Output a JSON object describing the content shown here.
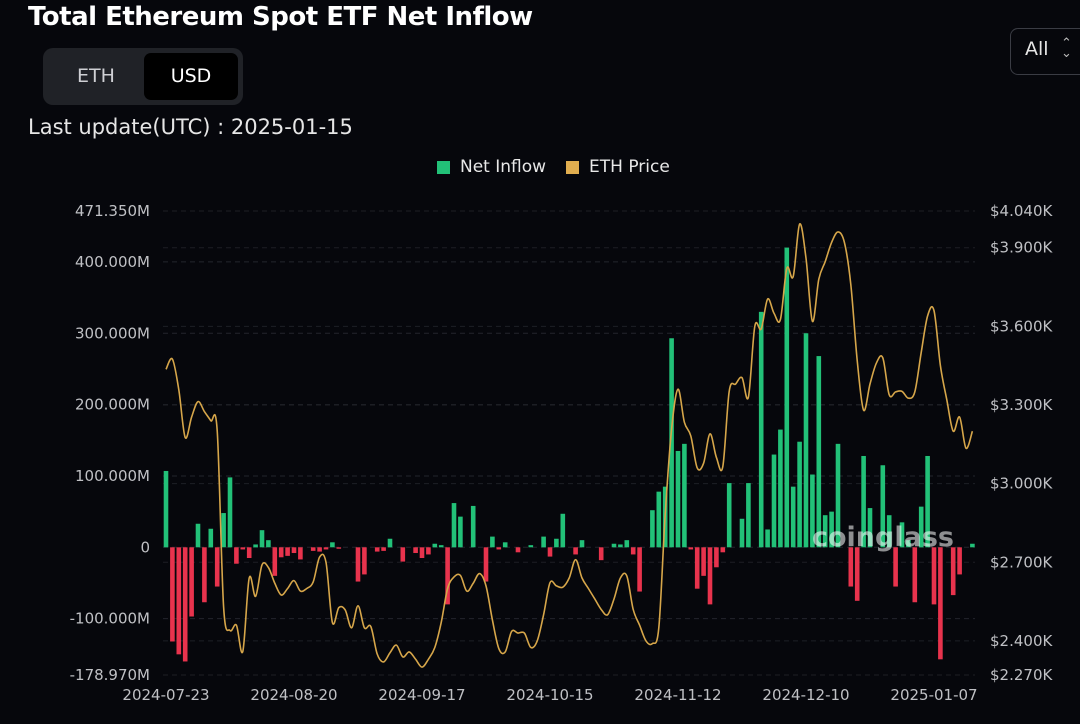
{
  "header": {
    "title": "Total Ethereum Spot ETF Net Inflow",
    "toggle": {
      "options": [
        "ETH",
        "USD"
      ],
      "selected": "USD"
    },
    "last_update": "Last update(UTC) : 2025-01-15",
    "range_select": {
      "value": "All",
      "icon": "chevron-up-down-icon"
    }
  },
  "watermark": "coinglass",
  "colors": {
    "inflow_positive": "#22c178",
    "inflow_negative": "#e8334d",
    "price_line": "#d6a64a",
    "background": "#06070c"
  },
  "chart_data": {
    "type": "bar+line",
    "title": "Total Ethereum Spot ETF Net Inflow",
    "legend": {
      "placement": "top-center",
      "entries": [
        "Net Inflow",
        "ETH Price"
      ]
    },
    "grid": true,
    "x_tick_labels": [
      "2024-07-23",
      "2024-08-20",
      "2024-09-17",
      "2024-10-15",
      "2024-11-12",
      "2024-12-10",
      "2025-01-07"
    ],
    "x_tick_bar_index": [
      0,
      20,
      40,
      60,
      80,
      100,
      120
    ],
    "y_left": {
      "ticks": [
        471.35,
        400,
        300,
        200,
        100,
        0,
        -100,
        -178.97
      ],
      "tick_labels": [
        "471.350M",
        "400.000M",
        "300.000M",
        "200.000M",
        "100.000M",
        "0",
        "-100.000M",
        "-178.970M"
      ],
      "range": [
        -178.97,
        471.35
      ],
      "unit": "M USD"
    },
    "y_right": {
      "ticks": [
        4040,
        3900,
        3600,
        3300,
        3000,
        2700,
        2400,
        2270
      ],
      "tick_labels": [
        "$4.040K",
        "$3.900K",
        "$3.600K",
        "$3.300K",
        "$3.000K",
        "$2.700K",
        "$2.400K",
        "$2.270K"
      ],
      "range": [
        2270,
        4040
      ],
      "unit": "USD"
    },
    "series": [
      {
        "name": "Net Inflow",
        "type": "bar",
        "axis": "left",
        "values": [
          107,
          -132,
          -150,
          -160,
          -97,
          33,
          -77,
          26,
          -55,
          48,
          98,
          -23,
          -3,
          -15,
          4,
          24,
          10,
          -40,
          -14,
          -12,
          -8,
          -17,
          0,
          -5,
          -6,
          -3,
          7,
          -2,
          0,
          0,
          -48,
          -38,
          0,
          -6,
          -5,
          12,
          0,
          -20,
          0,
          -8,
          -15,
          -10,
          5,
          3,
          -80,
          62,
          43,
          0,
          58,
          0,
          -48,
          15,
          -3,
          7,
          0,
          -7,
          0,
          3,
          0,
          15,
          -13,
          12,
          47,
          0,
          -10,
          10,
          0,
          0,
          -18,
          0,
          5,
          4,
          10,
          -10,
          -62,
          0,
          52,
          78,
          85,
          293,
          135,
          145,
          -3,
          -58,
          -40,
          -80,
          -28,
          -7,
          90,
          0,
          40,
          90,
          0,
          330,
          25,
          130,
          165,
          420,
          85,
          148,
          300,
          102,
          268,
          45,
          50,
          145,
          0,
          -55,
          -75,
          128,
          55,
          0,
          115,
          45,
          -55,
          35,
          10,
          -77,
          57,
          128,
          -80,
          -157,
          0,
          -67,
          -38,
          0,
          5
        ]
      },
      {
        "name": "ETH Price",
        "type": "line",
        "axis": "right",
        "values": [
          3436,
          3475,
          3358,
          3176,
          3254,
          3313,
          3275,
          3240,
          3202,
          2530,
          2440,
          2460,
          2360,
          2640,
          2570,
          2690,
          2680,
          2620,
          2575,
          2600,
          2630,
          2590,
          2600,
          2625,
          2720,
          2700,
          2470,
          2527,
          2518,
          2450,
          2534,
          2450,
          2455,
          2350,
          2320,
          2355,
          2384,
          2339,
          2358,
          2330,
          2300,
          2330,
          2375,
          2470,
          2600,
          2644,
          2650,
          2590,
          2620,
          2657,
          2610,
          2480,
          2371,
          2358,
          2436,
          2430,
          2430,
          2375,
          2400,
          2500,
          2622,
          2610,
          2605,
          2640,
          2710,
          2640,
          2600,
          2560,
          2520,
          2500,
          2560,
          2640,
          2648,
          2520,
          2460,
          2400,
          2390,
          2450,
          2883,
          3208,
          3360,
          3234,
          3182,
          3060,
          3078,
          3190,
          3100,
          3065,
          3352,
          3380,
          3404,
          3330,
          3600,
          3590,
          3704,
          3650,
          3626,
          3821,
          3790,
          3990,
          3860,
          3619,
          3780,
          3847,
          3920,
          3960,
          3920,
          3760,
          3470,
          3280,
          3380,
          3460,
          3480,
          3339,
          3350,
          3352,
          3326,
          3350,
          3500,
          3640,
          3660,
          3450,
          3320,
          3200,
          3254,
          3135,
          3200
        ]
      }
    ]
  }
}
